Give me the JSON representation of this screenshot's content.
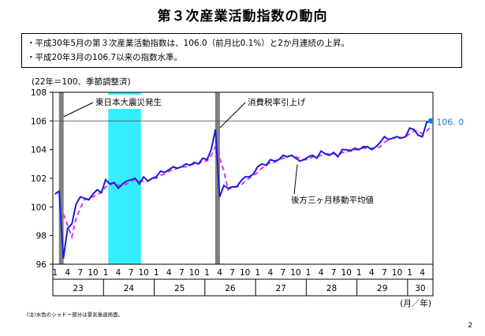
{
  "title": "第３次産業活動指数の動向",
  "summary": [
    "・平成30年5月の第３次産業活動指数は、106.0（前月比0.1%）と2か月連続の上昇。",
    "・平成20年3月の106.7以来の指数水準。"
  ],
  "footnote": "(注)水色のシャドー部分は景気後退局面。",
  "page_number": "2",
  "colors": {
    "index_line": "#1a1adc",
    "moving_average": "#e62ee6",
    "recession_shade": "#33eeff",
    "event_bar": "#808080",
    "reference_line": "#555555"
  },
  "chart_data": {
    "type": "line",
    "unit_label": "(22年＝100、季節調整済)",
    "ylim": [
      96,
      108
    ],
    "yticks": [
      96,
      98,
      100,
      102,
      104,
      106,
      108
    ],
    "xlim": [
      0,
      89
    ],
    "month_ticks": [
      {
        "i": 0,
        "label": "1"
      },
      {
        "i": 3,
        "label": "4"
      },
      {
        "i": 6,
        "label": "7"
      },
      {
        "i": 9,
        "label": "10"
      },
      {
        "i": 12,
        "label": "1"
      },
      {
        "i": 15,
        "label": "4"
      },
      {
        "i": 18,
        "label": "7"
      },
      {
        "i": 21,
        "label": "10"
      },
      {
        "i": 24,
        "label": "1"
      },
      {
        "i": 27,
        "label": "4"
      },
      {
        "i": 30,
        "label": "7"
      },
      {
        "i": 33,
        "label": "10"
      },
      {
        "i": 36,
        "label": "1"
      },
      {
        "i": 39,
        "label": "4"
      },
      {
        "i": 42,
        "label": "7"
      },
      {
        "i": 45,
        "label": "10"
      },
      {
        "i": 48,
        "label": "1"
      },
      {
        "i": 51,
        "label": "4"
      },
      {
        "i": 54,
        "label": "7"
      },
      {
        "i": 57,
        "label": "10"
      },
      {
        "i": 60,
        "label": "1"
      },
      {
        "i": 63,
        "label": "4"
      },
      {
        "i": 66,
        "label": "7"
      },
      {
        "i": 69,
        "label": "10"
      },
      {
        "i": 72,
        "label": "1"
      },
      {
        "i": 75,
        "label": "4"
      },
      {
        "i": 78,
        "label": "7"
      },
      {
        "i": 81,
        "label": "10"
      },
      {
        "i": 84,
        "label": "1"
      },
      {
        "i": 87,
        "label": "4"
      }
    ],
    "years": [
      "23",
      "24",
      "25",
      "26",
      "27",
      "28",
      "29",
      "30"
    ],
    "x_unit_label": "(月／年)",
    "reference_value": 106.0,
    "reference_label": "106. 0",
    "recession_shade_range": [
      13,
      20
    ],
    "event_bars": [
      {
        "i": 1.5,
        "label": "東日本大震災発生"
      },
      {
        "i": 38.5,
        "label": "消費税率引上げ"
      }
    ],
    "series": [
      {
        "key": "index",
        "values": [
          100.9,
          101.1,
          96.4,
          98.5,
          98.8,
          100.2,
          100.7,
          100.6,
          100.5,
          100.9,
          101.2,
          101.0,
          101.9,
          101.6,
          101.7,
          101.3,
          101.6,
          101.8,
          101.9,
          102.0,
          101.6,
          102.1,
          101.8,
          102.0,
          102.1,
          102.5,
          102.4,
          102.6,
          102.8,
          102.7,
          102.8,
          103.0,
          102.9,
          103.1,
          103.0,
          103.4,
          103.3,
          104.0,
          105.4,
          100.7,
          101.5,
          101.3,
          101.4,
          101.4,
          101.8,
          102.1,
          102.1,
          102.3,
          102.8,
          103.0,
          102.9,
          103.3,
          103.2,
          103.3,
          103.6,
          103.5,
          103.6,
          103.4,
          103.2,
          103.3,
          103.5,
          103.6,
          103.4,
          103.9,
          103.7,
          103.6,
          103.8,
          103.5,
          104.0,
          104.0,
          103.9,
          104.1,
          104.0,
          104.2,
          104.2,
          104.0,
          104.2,
          104.5,
          104.9,
          104.7,
          104.8,
          104.9,
          104.8,
          104.9,
          105.5,
          105.4,
          105.0,
          104.9,
          105.9,
          106.0
        ]
      },
      {
        "key": "moving_average",
        "label": "後方三ヶ月移動平均値",
        "start_index": 2,
        "values": [
          99.5,
          98.7,
          97.9,
          99.2,
          99.9,
          100.5,
          100.6,
          100.7,
          100.9,
          101.0,
          101.4,
          101.5,
          101.7,
          101.5,
          101.5,
          101.6,
          101.8,
          101.9,
          101.8,
          101.8,
          101.8,
          102.0,
          102.0,
          102.2,
          102.3,
          102.5,
          102.6,
          102.7,
          102.8,
          102.8,
          102.9,
          103.0,
          103.0,
          103.2,
          103.2,
          103.6,
          104.2,
          103.4,
          102.5,
          101.2,
          101.4,
          101.4,
          101.5,
          101.8,
          102.0,
          102.2,
          102.4,
          102.7,
          102.9,
          103.1,
          103.1,
          103.3,
          103.4,
          103.5,
          103.6,
          103.5,
          103.4,
          103.3,
          103.3,
          103.5,
          103.5,
          103.6,
          103.7,
          103.7,
          103.7,
          103.6,
          103.8,
          103.8,
          104.0,
          104.0,
          104.0,
          104.1,
          104.1,
          104.1,
          104.1,
          104.2,
          104.5,
          104.7,
          104.8,
          104.8,
          104.8,
          104.9,
          105.1,
          105.3,
          105.3,
          105.1,
          105.3,
          105.6
        ]
      }
    ]
  }
}
